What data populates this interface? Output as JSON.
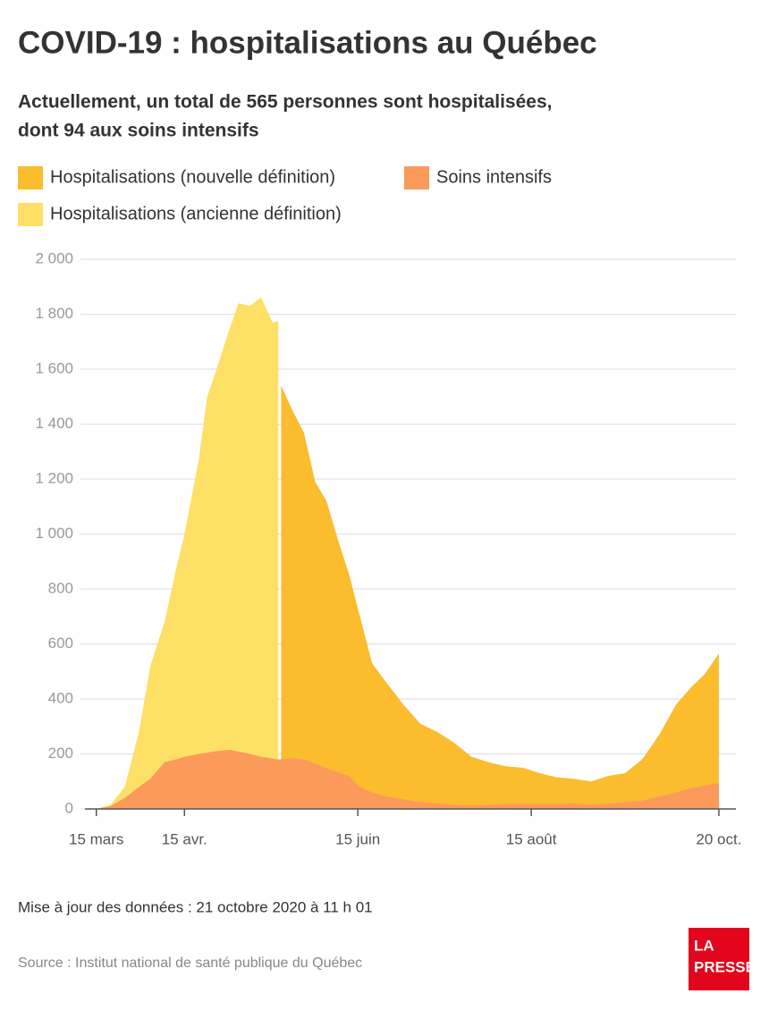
{
  "chart_data": {
    "type": "area",
    "title": "COVID-19 : hospitalisations au Québec",
    "subtitle": [
      "Actuellement, un total de 565 personnes sont hospitalisées,",
      "dont 94 aux soins intensifs"
    ],
    "note": "Mise à jour des données : 21 octobre 2020 à 11 h 01",
    "source": "Source : Institut national de santé publique du Québec",
    "logo": [
      "LA",
      "PRESSE"
    ],
    "xlim": [
      "03-11",
      "10-26"
    ],
    "xticks": [
      {
        "value": "03-15",
        "label": "15 mars"
      },
      {
        "value": "04-15",
        "label": "15 avr."
      },
      {
        "value": "06-15",
        "label": "15 juin"
      },
      {
        "value": "08-15",
        "label": "15 août"
      },
      {
        "value": "10-20",
        "label": "20 oct."
      }
    ],
    "ylim": [
      0,
      2000
    ],
    "yticks": [
      0,
      200,
      400,
      600,
      800,
      {
        "value": 1000,
        "label": "1 000"
      },
      {
        "value": 1200,
        "label": "1 200"
      },
      {
        "value": 1400,
        "label": "1 400"
      },
      {
        "value": 1600,
        "label": "1 600"
      },
      {
        "value": 1800,
        "label": "1 800"
      },
      {
        "value": 2000,
        "label": "2 000"
      }
    ],
    "grid": true,
    "series": [
      {
        "name": "Hospitalisations (nouvelle définition)",
        "color": "#fbbc2e",
        "x": [
          "05-19",
          "05-23",
          "05-27",
          "05-31",
          "06-04",
          "06-08",
          "06-12",
          "06-15",
          "06-20",
          "06-25",
          "07-01",
          "07-07",
          "07-13",
          "07-19",
          "07-25",
          "07-31",
          "08-06",
          "08-12",
          "08-18",
          "08-24",
          "08-30",
          "09-05",
          "09-11",
          "09-17",
          "09-23",
          "09-29",
          "10-05",
          "10-10",
          "10-15",
          "10-20"
        ],
        "values": [
          1540,
          1450,
          1370,
          1190,
          1120,
          980,
          850,
          730,
          530,
          460,
          380,
          310,
          280,
          240,
          190,
          170,
          155,
          150,
          130,
          115,
          110,
          100,
          120,
          130,
          180,
          270,
          380,
          440,
          490,
          565
        ]
      },
      {
        "name": "Soins intensifs",
        "color": "#fc9a5c",
        "x": [
          "03-15",
          "03-20",
          "03-25",
          "03-30",
          "04-03",
          "04-08",
          "04-12",
          "04-15",
          "04-20",
          "04-26",
          "05-01",
          "05-06",
          "05-12",
          "05-18",
          "05-23",
          "05-27",
          "06-01",
          "06-06",
          "06-12",
          "06-15",
          "06-20",
          "06-25",
          "07-01",
          "07-07",
          "07-13",
          "07-19",
          "07-25",
          "07-31",
          "08-06",
          "08-12",
          "08-18",
          "08-24",
          "08-30",
          "09-05",
          "09-11",
          "09-17",
          "09-23",
          "09-29",
          "10-05",
          "10-10",
          "10-15",
          "10-20"
        ],
        "values": [
          0,
          10,
          40,
          80,
          110,
          170,
          180,
          190,
          200,
          210,
          215,
          205,
          190,
          180,
          185,
          180,
          160,
          140,
          120,
          85,
          60,
          45,
          35,
          25,
          20,
          15,
          12,
          15,
          18,
          18,
          17,
          18,
          20,
          15,
          20,
          25,
          30,
          45,
          60,
          75,
          85,
          94
        ]
      },
      {
        "name": "Hospitalisations (ancienne définition)",
        "color": "#fee067",
        "x": [
          "03-15",
          "03-20",
          "03-25",
          "03-30",
          "04-03",
          "04-08",
          "04-12",
          "04-15",
          "04-20",
          "04-23",
          "04-26",
          "04-30",
          "05-04",
          "05-08",
          "05-12",
          "05-16",
          "05-18"
        ],
        "values": [
          0,
          15,
          80,
          280,
          520,
          680,
          870,
          1000,
          1270,
          1500,
          1590,
          1720,
          1840,
          1830,
          1860,
          1770,
          1775
        ]
      }
    ]
  }
}
